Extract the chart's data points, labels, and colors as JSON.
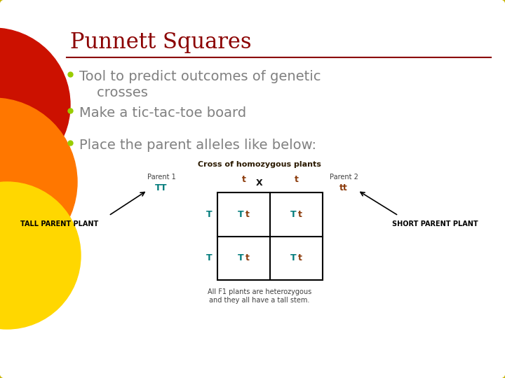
{
  "title": "Punnett Squares",
  "title_color": "#8B0000",
  "title_fontsize": 22,
  "bg_color": "#FFFFFF",
  "border_color": "#C8B400",
  "bullet_color": "#99CC00",
  "bullet_text_color": "#808080",
  "bullet_fontsize": 14,
  "bullets": [
    "Tool to predict outcomes of genetic\n    crosses",
    "Make a tic-tac-toe board",
    "Place the parent alleles like below:"
  ],
  "cross_title": "Cross of homozygous plants",
  "cross_title_color": "#2B1A00",
  "cross_title_fontsize": 8,
  "parent1_label": "Parent 1",
  "parent2_label": "Parent 2",
  "parent_label_color": "#404040",
  "parent_label_fontsize": 7,
  "parent1_allele": "TT",
  "parent2_allele": "tt",
  "parent_allele_color_TT": "#007B7B",
  "parent_allele_color_tt": "#8B3A0A",
  "cross_symbol": "X",
  "cross_symbol_fontsize": 9,
  "top_alleles": [
    "t",
    "t"
  ],
  "top_allele_color": "#8B3A0A",
  "left_alleles": [
    "T",
    "T"
  ],
  "left_allele_color": "#007B7B",
  "cell_T_color": "#007B7B",
  "cell_t_color": "#8B3A0A",
  "cell_fontsize": 9,
  "tall_label": "TALL PARENT PLANT",
  "short_label": "SHORT PARENT PLANT",
  "parent_plant_fontsize": 7,
  "footer_text": "All F1 plants are heterozygous\nand they all have a tall stem.",
  "footer_color": "#404040",
  "footer_fontsize": 7
}
